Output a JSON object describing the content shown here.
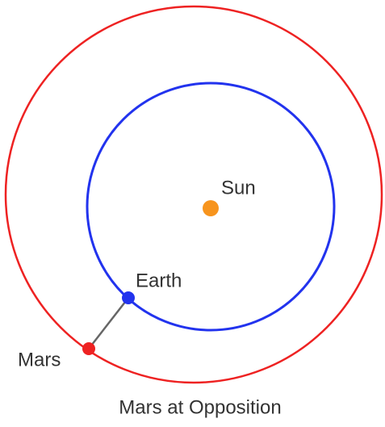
{
  "nodes": [
    {
      "label": "Sun"
    },
    {
      "label": "Earth"
    },
    {
      "label": "Mars"
    }
  ],
  "caption": "Mars at Opposition"
}
